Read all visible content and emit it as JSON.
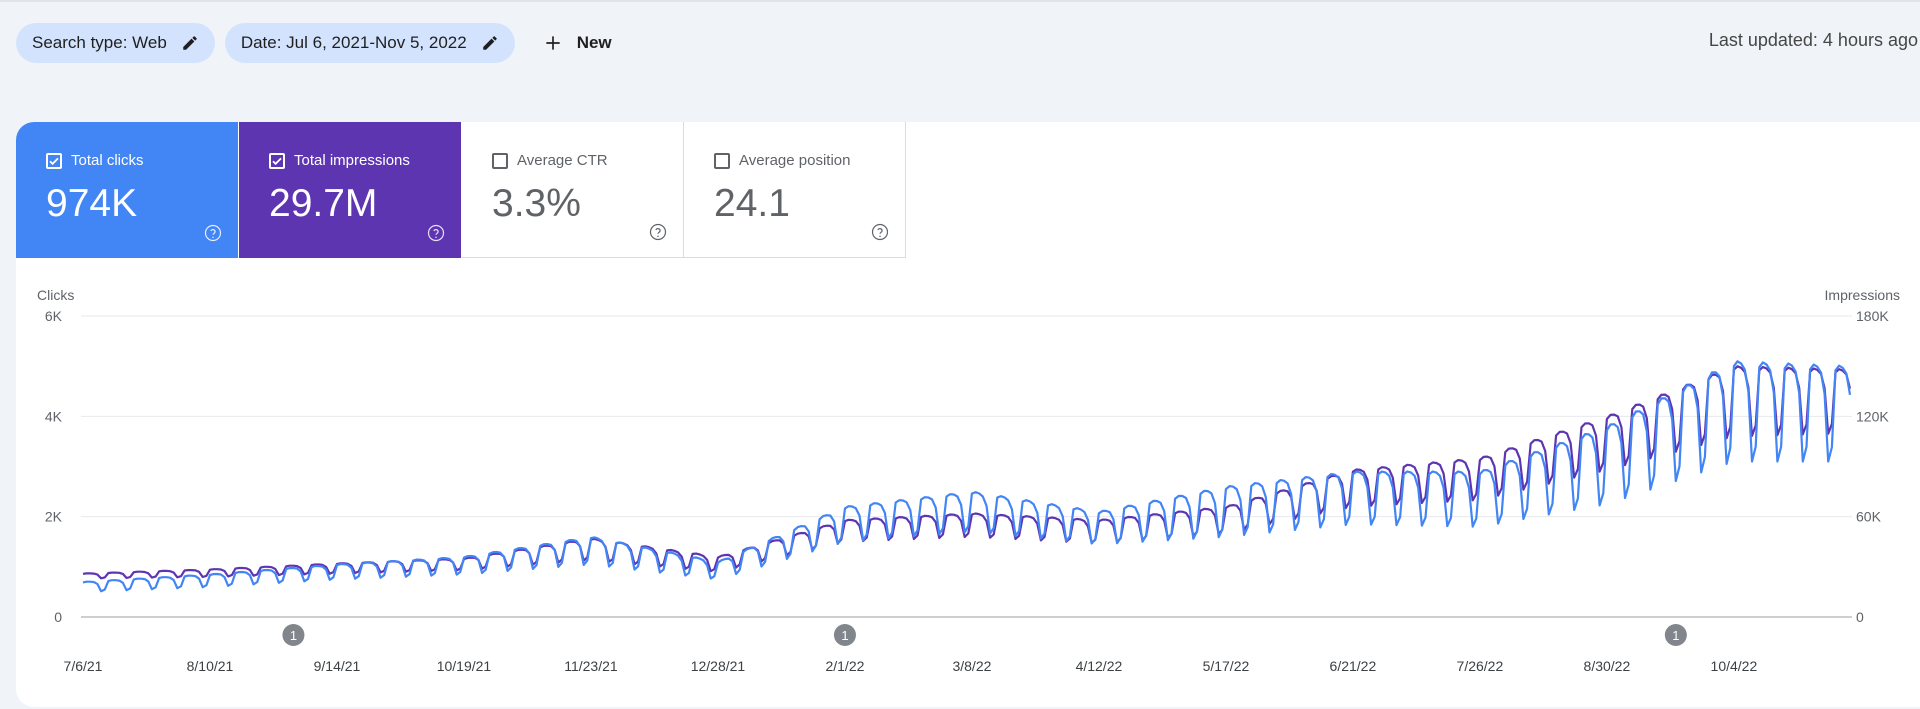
{
  "filters": {
    "search_type": "Search type: Web",
    "date": "Date: Jul 6, 2021-Nov 5, 2022",
    "new_label": "New"
  },
  "last_updated": "Last updated: 4 hours ago",
  "metrics": [
    {
      "label": "Total clicks",
      "value": "974K",
      "checked": true,
      "color": "#4285f4"
    },
    {
      "label": "Total impressions",
      "value": "29.7M",
      "checked": true,
      "color": "#5e35b1"
    },
    {
      "label": "Average CTR",
      "value": "3.3%",
      "checked": false
    },
    {
      "label": "Average position",
      "value": "24.1",
      "checked": false
    }
  ],
  "chart_data": {
    "type": "line",
    "left_axis": {
      "label": "Clicks",
      "ticks": [
        "6K",
        "4K",
        "2K",
        "0"
      ],
      "range": [
        0,
        6000
      ]
    },
    "right_axis": {
      "label": "Impressions",
      "ticks": [
        "180K",
        "120K",
        "60K",
        "0"
      ],
      "range": [
        0,
        180000
      ]
    },
    "x_ticks": [
      "7/6/21",
      "8/10/21",
      "9/14/21",
      "10/19/21",
      "11/23/21",
      "12/28/21",
      "2/1/22",
      "3/8/22",
      "4/12/22",
      "5/17/22",
      "6/21/22",
      "7/26/22",
      "8/30/22",
      "10/4/22"
    ],
    "annotations": [
      {
        "label": "1",
        "date": "2021-09-02"
      },
      {
        "label": "1",
        "date": "2022-02-01"
      },
      {
        "label": "1",
        "date": "2022-09-18"
      }
    ],
    "series": [
      {
        "name": "Clicks",
        "axis": "left",
        "color": "#4285f4",
        "x_weekly": [
          "2021-07-06",
          "2021-08-10",
          "2021-09-14",
          "2021-10-19",
          "2021-11-23",
          "2021-12-28",
          "2022-02-01",
          "2022-03-08",
          "2022-04-12",
          "2022-05-17",
          "2022-06-21",
          "2022-07-26",
          "2022-08-30",
          "2022-10-04",
          "2022-11-05"
        ],
        "weekly_high": [
          700,
          850,
          1050,
          1200,
          1600,
          1100,
          2200,
          2500,
          2100,
          2600,
          2900,
          2900,
          3800,
          5100,
          5000
        ],
        "weekly_low": [
          500,
          600,
          750,
          850,
          1050,
          750,
          1500,
          1700,
          1450,
          1600,
          1850,
          1800,
          2250,
          3100,
          3100
        ]
      },
      {
        "name": "Impressions",
        "axis": "right",
        "color": "#5e35b1",
        "x_weekly": [
          "2021-07-06",
          "2021-08-10",
          "2021-09-14",
          "2021-10-19",
          "2021-11-23",
          "2021-12-28",
          "2022-02-01",
          "2022-03-08",
          "2022-04-12",
          "2022-05-17",
          "2022-06-21",
          "2022-07-26",
          "2022-08-30",
          "2022-10-04",
          "2022-11-05"
        ],
        "weekly_high": [
          26000,
          28500,
          32000,
          35000,
          47000,
          36000,
          58000,
          62000,
          58000,
          66000,
          88000,
          95000,
          120000,
          150000,
          148000
        ],
        "weekly_low": [
          23000,
          24000,
          26000,
          28000,
          34000,
          27000,
          45000,
          48000,
          44000,
          50000,
          66000,
          70000,
          88000,
          108000,
          110000
        ]
      }
    ]
  }
}
